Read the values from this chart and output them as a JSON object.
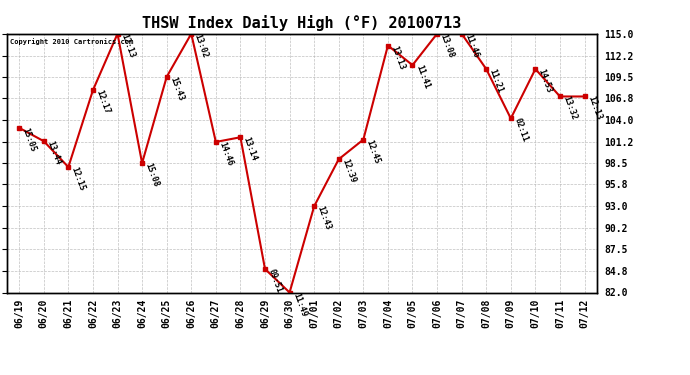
{
  "title": "THSW Index Daily High (°F) 20100713",
  "copyright": "Copyright 2010 Cartronics.com",
  "dates": [
    "06/19",
    "06/20",
    "06/21",
    "06/22",
    "06/23",
    "06/24",
    "06/25",
    "06/26",
    "06/27",
    "06/28",
    "06/29",
    "06/30",
    "07/01",
    "07/02",
    "07/03",
    "07/04",
    "07/05",
    "07/06",
    "07/07",
    "07/08",
    "07/09",
    "07/10",
    "07/11",
    "07/12"
  ],
  "values": [
    103.0,
    101.3,
    98.0,
    107.8,
    115.0,
    98.5,
    109.5,
    115.0,
    101.2,
    101.8,
    85.0,
    82.0,
    93.0,
    99.0,
    101.5,
    113.5,
    111.0,
    115.0,
    115.0,
    110.5,
    104.2,
    110.5,
    107.0,
    107.0
  ],
  "times": [
    "15:05",
    "13:44",
    "12:15",
    "12:17",
    "12:13",
    "15:08",
    "15:43",
    "13:02",
    "14:46",
    "13:14",
    "09:51",
    "11:49",
    "12:43",
    "12:39",
    "12:45",
    "13:13",
    "11:41",
    "13:08",
    "11:46",
    "11:21",
    "02:11",
    "14:53",
    "13:32",
    "12:13"
  ],
  "ylim": [
    82.0,
    115.0
  ],
  "yticks": [
    82.0,
    84.8,
    87.5,
    90.2,
    93.0,
    95.8,
    98.5,
    101.2,
    104.0,
    106.8,
    109.5,
    112.2,
    115.0
  ],
  "line_color": "#cc0000",
  "marker_color": "#cc0000",
  "bg_color": "#ffffff",
  "grid_color": "#b0b0b0",
  "title_fontsize": 11,
  "tick_fontsize": 7,
  "annot_fontsize": 6
}
